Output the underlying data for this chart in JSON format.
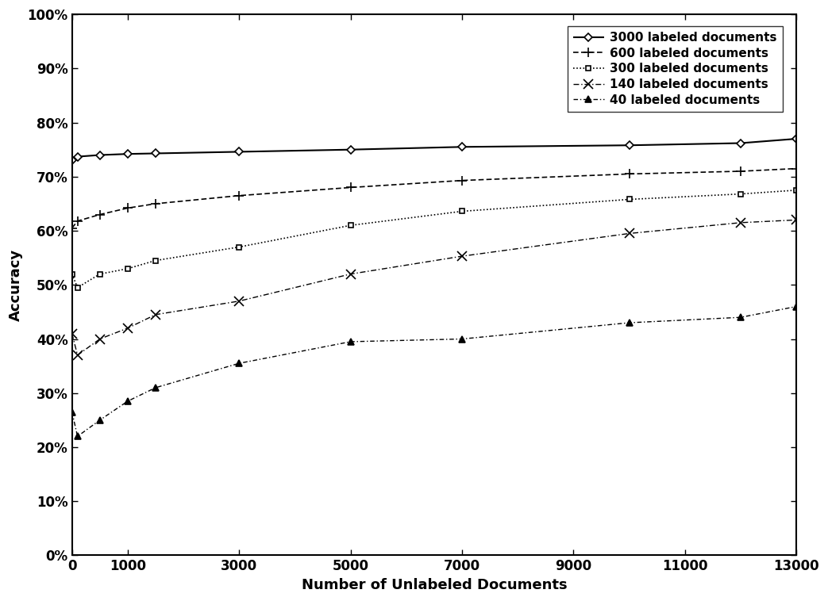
{
  "xlabel": "Number of Unlabeled Documents",
  "ylabel": "Accuracy",
  "xlim": [
    0,
    13000
  ],
  "ylim": [
    0,
    1.0
  ],
  "xticks": [
    0,
    1000,
    3000,
    5000,
    7000,
    9000,
    11000,
    13000
  ],
  "yticks": [
    0.0,
    0.1,
    0.2,
    0.3,
    0.4,
    0.5,
    0.6,
    0.7,
    0.8,
    0.9,
    1.0
  ],
  "series": [
    {
      "label": "3000 labeled documents",
      "x": [
        0,
        100,
        500,
        1000,
        1500,
        3000,
        5000,
        7000,
        10000,
        12000,
        13000
      ],
      "y": [
        0.731,
        0.737,
        0.74,
        0.742,
        0.743,
        0.746,
        0.75,
        0.755,
        0.758,
        0.762,
        0.77
      ],
      "linestyle": "solid",
      "marker": "D",
      "markersize": 5,
      "color": "black",
      "linewidth": 1.5,
      "markerfacecolor": "white"
    },
    {
      "label": "600 labeled documents",
      "x": [
        0,
        100,
        500,
        1000,
        1500,
        3000,
        5000,
        7000,
        10000,
        12000,
        13000
      ],
      "y": [
        0.605,
        0.618,
        0.63,
        0.642,
        0.65,
        0.665,
        0.68,
        0.693,
        0.705,
        0.71,
        0.715
      ],
      "linestyle": "dashed",
      "marker": "P",
      "markersize": 7,
      "color": "black",
      "linewidth": 1.2,
      "markerfacecolor": "black"
    },
    {
      "label": "300 labeled documents",
      "x": [
        0,
        100,
        500,
        1000,
        1500,
        3000,
        5000,
        7000,
        10000,
        12000,
        13000
      ],
      "y": [
        0.52,
        0.495,
        0.52,
        0.53,
        0.545,
        0.57,
        0.61,
        0.636,
        0.658,
        0.668,
        0.675
      ],
      "linestyle": "dotted",
      "marker": "s",
      "markersize": 6,
      "color": "black",
      "linewidth": 1.2,
      "markerfacecolor": "white"
    },
    {
      "label": "140 labeled documents",
      "x": [
        0,
        100,
        500,
        1000,
        1500,
        3000,
        5000,
        7000,
        10000,
        12000,
        13000
      ],
      "y": [
        0.41,
        0.37,
        0.4,
        0.42,
        0.445,
        0.47,
        0.52,
        0.553,
        0.595,
        0.615,
        0.62
      ],
      "linestyle": "dashdot",
      "marker": "x",
      "markersize": 8,
      "color": "black",
      "linewidth": 1.0,
      "markerfacecolor": "black"
    },
    {
      "label": "40 labeled documents",
      "x": [
        0,
        100,
        500,
        1000,
        1500,
        3000,
        5000,
        7000,
        10000,
        12000,
        13000
      ],
      "y": [
        0.265,
        0.22,
        0.25,
        0.285,
        0.31,
        0.355,
        0.395,
        0.4,
        0.43,
        0.44,
        0.46
      ],
      "linestyle": "dashdot",
      "marker": "^",
      "markersize": 7,
      "color": "black",
      "linewidth": 1.0,
      "markerfacecolor": "black"
    }
  ]
}
